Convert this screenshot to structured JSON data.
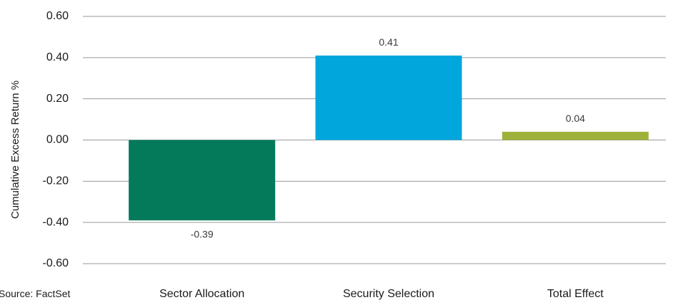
{
  "chart_data": {
    "type": "bar",
    "categories": [
      "Sector Allocation",
      "Security Selection",
      "Total Effect"
    ],
    "values": [
      -0.39,
      0.41,
      0.04
    ],
    "data_labels": [
      "-0.39",
      "0.41",
      "0.04"
    ],
    "colors": [
      "#047A5B",
      "#00A6DC",
      "#9EB23B"
    ],
    "ylabel": "Cumulative Excess Return %",
    "ylim": [
      -0.6,
      0.6
    ],
    "yticks": [
      0.6,
      0.4,
      0.2,
      0.0,
      -0.2,
      -0.4,
      -0.6
    ],
    "ytick_labels": [
      "0.60",
      "0.40",
      "0.20",
      "0.00",
      "-0.20",
      "-0.40",
      "-0.60"
    ],
    "grid": true,
    "grid_color": "#9a9a9a",
    "source": "Source: FactSet"
  }
}
